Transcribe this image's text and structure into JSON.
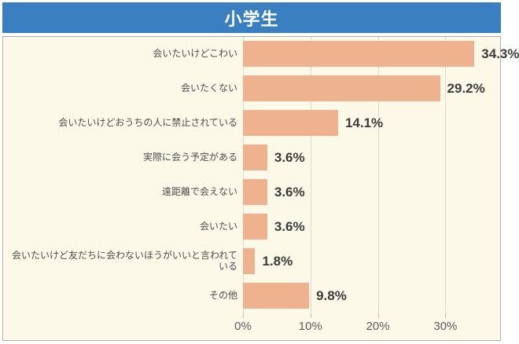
{
  "header": {
    "title": "小学生"
  },
  "chart_data": {
    "type": "bar",
    "orientation": "horizontal",
    "title": "小学生",
    "categories": [
      "会いたいけどこわい",
      "会いたくない",
      "会いたいけどおうちの人に禁止されている",
      "実際に会う予定がある",
      "遠距離で会えない",
      "会いたい",
      "会いたいけど友だちに会わないほうがいいと言われている",
      "その他"
    ],
    "values": [
      34.3,
      29.2,
      14.1,
      3.6,
      3.6,
      3.6,
      1.8,
      9.8
    ],
    "value_labels": [
      "34.3%",
      "29.2%",
      "14.1%",
      "3.6%",
      "3.6%",
      "3.6%",
      "1.8%",
      "9.8%"
    ],
    "xlabel": "",
    "ylabel": "",
    "x_ticks": [
      0,
      10,
      20,
      30
    ],
    "x_tick_labels": [
      "0%",
      "10%",
      "20%",
      "30%"
    ],
    "xlim": [
      0,
      38
    ],
    "grid": "vertical",
    "legend": "none",
    "colors": {
      "bar": "#eeb38e",
      "panel_bg": "#fcf9e8",
      "panel_border": "#b3b1a7",
      "header_bg": "#3a80c1",
      "header_text": "#ffffff",
      "gridline": "#dcd9cc",
      "value_text": "#3b3b3b",
      "category_text": "#4d4d4d",
      "axis_text": "#5b5b5b"
    }
  }
}
